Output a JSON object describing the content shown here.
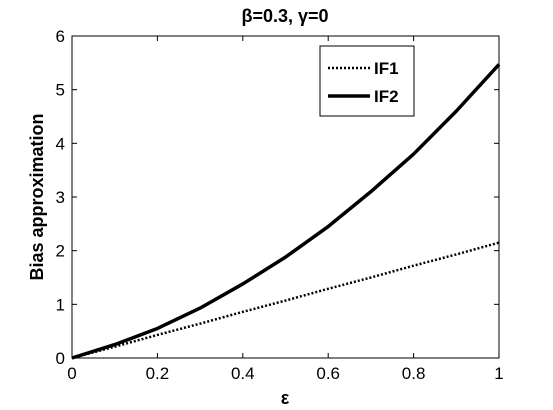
{
  "chart_data": {
    "type": "line",
    "title": "β=0.3, γ=0",
    "xlabel": "ε",
    "ylabel": "Bias approximation",
    "xlim": [
      0,
      1
    ],
    "ylim": [
      0,
      6
    ],
    "xticks": [
      0,
      0.2,
      0.4,
      0.6,
      0.8,
      1
    ],
    "xtick_labels": [
      "0",
      "0.2",
      "0.4",
      "0.6",
      "0.8",
      "1"
    ],
    "yticks": [
      0,
      1,
      2,
      3,
      4,
      5,
      6
    ],
    "ytick_labels": [
      "0",
      "1",
      "2",
      "3",
      "4",
      "5",
      "6"
    ],
    "grid": false,
    "legend_position": "top-right",
    "series": [
      {
        "name": "IF1",
        "line_style": "dotted",
        "color": "#000000",
        "x": [
          0,
          0.1,
          0.2,
          0.3,
          0.4,
          0.5,
          0.6,
          0.7,
          0.8,
          0.9,
          1.0
        ],
        "y": [
          0,
          0.21,
          0.43,
          0.64,
          0.86,
          1.07,
          1.29,
          1.5,
          1.72,
          1.93,
          2.15
        ]
      },
      {
        "name": "IF2",
        "line_style": "solid",
        "color": "#000000",
        "x": [
          0,
          0.1,
          0.2,
          0.3,
          0.4,
          0.5,
          0.6,
          0.7,
          0.8,
          0.9,
          1.0
        ],
        "y": [
          0,
          0.25,
          0.55,
          0.93,
          1.38,
          1.88,
          2.45,
          3.1,
          3.8,
          4.6,
          5.47
        ]
      }
    ]
  }
}
